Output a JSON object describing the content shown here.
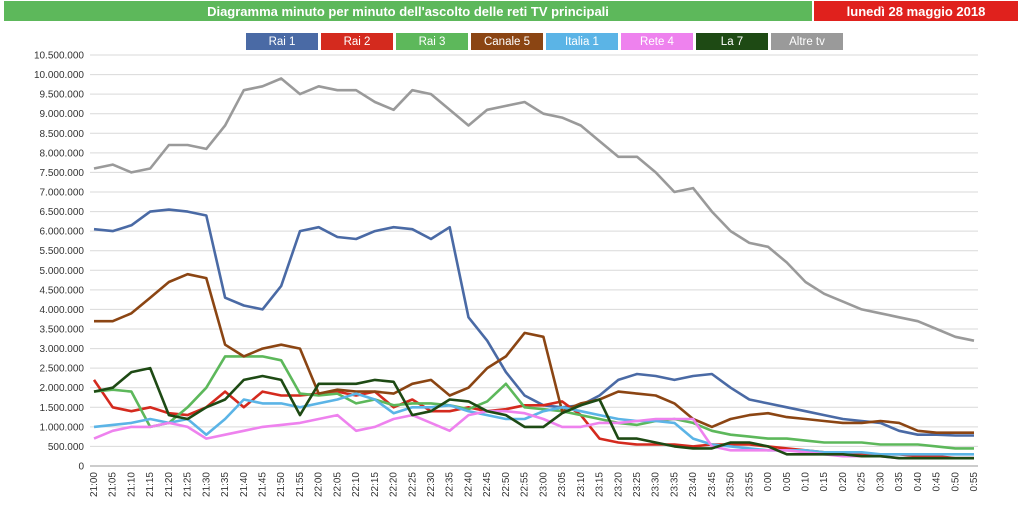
{
  "header": {
    "title": "Diagramma minuto per minuto dell'ascolto delle reti TV principali",
    "date": "lunedì 28 maggio 2018"
  },
  "colors": {
    "title_bg": "#5db85b",
    "date_bg": "#e0211d"
  },
  "chart_data": {
    "type": "line",
    "title": "Diagramma minuto per minuto dell'ascolto delle reti TV principali",
    "xlabel": "",
    "ylabel": "",
    "ylim": [
      0,
      10500000
    ],
    "y_ticks": [
      "0",
      "500.000",
      "1.000.000",
      "1.500.000",
      "2.000.000",
      "2.500.000",
      "3.000.000",
      "3.500.000",
      "4.000.000",
      "4.500.000",
      "5.000.000",
      "5.500.000",
      "6.000.000",
      "6.500.000",
      "7.000.000",
      "7.500.000",
      "8.000.000",
      "8.500.000",
      "9.000.000",
      "9.500.000",
      "10.000.000",
      "10.500.000"
    ],
    "x": [
      "21:00",
      "21:05",
      "21:10",
      "21:15",
      "21:20",
      "21:25",
      "21:30",
      "21:35",
      "21:40",
      "21:45",
      "21:50",
      "21:55",
      "22:00",
      "22:05",
      "22:10",
      "22:15",
      "22:20",
      "22:25",
      "22:30",
      "22:35",
      "22:40",
      "22:45",
      "22:50",
      "22:55",
      "23:00",
      "23:05",
      "23:10",
      "23:15",
      "23:20",
      "23:25",
      "23:30",
      "23:35",
      "23:40",
      "23:45",
      "23:50",
      "23:55",
      "0:00",
      "0:05",
      "0:10",
      "0:15",
      "0:20",
      "0:25",
      "0:30",
      "0:35",
      "0:40",
      "0:45",
      "0:50",
      "0:55"
    ],
    "grid": true,
    "legend_position": "top",
    "series": [
      {
        "name": "Rai 1",
        "color": "#4a6aa5",
        "values": [
          6050000,
          6000000,
          6150000,
          6500000,
          6550000,
          6500000,
          6400000,
          4300000,
          4100000,
          4000000,
          4600000,
          6000000,
          6100000,
          5850000,
          5800000,
          6000000,
          6100000,
          6050000,
          5800000,
          6100000,
          3800000,
          3200000,
          2400000,
          1800000,
          1550000,
          1500000,
          1550000,
          1800000,
          2200000,
          2350000,
          2300000,
          2200000,
          2300000,
          2350000,
          2000000,
          1700000,
          1600000,
          1500000,
          1400000,
          1300000,
          1200000,
          1150000,
          1100000,
          900000,
          800000,
          800000,
          780000,
          780000
        ]
      },
      {
        "name": "Rai 2",
        "color": "#d42a1e",
        "values": [
          2200000,
          1500000,
          1400000,
          1500000,
          1350000,
          1300000,
          1500000,
          1900000,
          1500000,
          1900000,
          1800000,
          1800000,
          1850000,
          1900000,
          1800000,
          1900000,
          1500000,
          1700000,
          1400000,
          1400000,
          1500000,
          1400000,
          1450000,
          1550000,
          1550000,
          1650000,
          1300000,
          700000,
          600000,
          550000,
          550000,
          550000,
          500000,
          550000,
          550000,
          550000,
          500000,
          450000,
          400000,
          350000,
          350000,
          300000,
          300000,
          300000,
          250000,
          250000,
          200000,
          200000
        ]
      },
      {
        "name": "Rai 3",
        "color": "#5db85b",
        "values": [
          1900000,
          1950000,
          1900000,
          1000000,
          1100000,
          1500000,
          2000000,
          2800000,
          2800000,
          2800000,
          2700000,
          1850000,
          1800000,
          1850000,
          1600000,
          1700000,
          1550000,
          1600000,
          1600000,
          1550000,
          1450000,
          1650000,
          2100000,
          1500000,
          1450000,
          1400000,
          1300000,
          1200000,
          1100000,
          1050000,
          1150000,
          1200000,
          1100000,
          900000,
          800000,
          750000,
          700000,
          700000,
          650000,
          600000,
          600000,
          600000,
          550000,
          550000,
          550000,
          500000,
          450000,
          450000
        ]
      },
      {
        "name": "Canale 5",
        "color": "#8b4513",
        "values": [
          3700000,
          3700000,
          3900000,
          4300000,
          4700000,
          4900000,
          4800000,
          3100000,
          2800000,
          3000000,
          3100000,
          3000000,
          1850000,
          1950000,
          1900000,
          1900000,
          1850000,
          2100000,
          2200000,
          1800000,
          2000000,
          2500000,
          2800000,
          3400000,
          3300000,
          1400000,
          1600000,
          1700000,
          1900000,
          1850000,
          1800000,
          1600000,
          1200000,
          1000000,
          1200000,
          1300000,
          1350000,
          1250000,
          1200000,
          1150000,
          1100000,
          1100000,
          1150000,
          1100000,
          900000,
          850000,
          850000,
          850000
        ]
      },
      {
        "name": "Italia 1",
        "color": "#5bb4e6",
        "values": [
          1000000,
          1050000,
          1100000,
          1200000,
          1100000,
          1200000,
          800000,
          1200000,
          1700000,
          1600000,
          1600000,
          1500000,
          1600000,
          1700000,
          1850000,
          1700000,
          1350000,
          1500000,
          1500000,
          1550000,
          1400000,
          1300000,
          1200000,
          1200000,
          1400000,
          1500000,
          1400000,
          1300000,
          1200000,
          1150000,
          1150000,
          1100000,
          700000,
          550000,
          500000,
          450000,
          400000,
          400000,
          400000,
          350000,
          350000,
          350000,
          300000,
          300000,
          300000,
          300000,
          300000,
          300000
        ]
      },
      {
        "name": "Rete 4",
        "color": "#ee82ee",
        "values": [
          700000,
          900000,
          1000000,
          1000000,
          1100000,
          1000000,
          700000,
          800000,
          900000,
          1000000,
          1050000,
          1100000,
          1200000,
          1300000,
          900000,
          1000000,
          1200000,
          1300000,
          1100000,
          900000,
          1300000,
          1400000,
          1400000,
          1350000,
          1200000,
          1000000,
          1000000,
          1100000,
          1100000,
          1150000,
          1200000,
          1200000,
          1200000,
          500000,
          400000,
          400000,
          400000,
          400000,
          350000,
          300000,
          250000,
          250000,
          250000,
          200000,
          200000,
          200000,
          200000,
          200000
        ]
      },
      {
        "name": "La 7",
        "color": "#1e4a14",
        "values": [
          1900000,
          2000000,
          2400000,
          2500000,
          1300000,
          1200000,
          1500000,
          1700000,
          2200000,
          2300000,
          2200000,
          1300000,
          2100000,
          2100000,
          2100000,
          2200000,
          2150000,
          1300000,
          1400000,
          1700000,
          1650000,
          1400000,
          1300000,
          1000000,
          1000000,
          1350000,
          1550000,
          1700000,
          700000,
          700000,
          600000,
          500000,
          450000,
          450000,
          600000,
          600000,
          500000,
          300000,
          300000,
          300000,
          300000,
          250000,
          250000,
          200000,
          200000,
          200000,
          200000,
          200000
        ]
      },
      {
        "name": "Altre tv",
        "color": "#9a9a9a",
        "values": [
          7600000,
          7700000,
          7500000,
          7600000,
          8200000,
          8200000,
          8100000,
          8700000,
          9600000,
          9700000,
          9900000,
          9500000,
          9700000,
          9600000,
          9600000,
          9300000,
          9100000,
          9600000,
          9500000,
          9100000,
          8700000,
          9100000,
          9200000,
          9300000,
          9000000,
          8900000,
          8700000,
          8300000,
          7900000,
          7900000,
          7500000,
          7000000,
          7100000,
          6500000,
          6000000,
          5700000,
          5600000,
          5200000,
          4700000,
          4400000,
          4200000,
          4000000,
          3900000,
          3800000,
          3700000,
          3500000,
          3300000,
          3200000
        ]
      }
    ]
  }
}
